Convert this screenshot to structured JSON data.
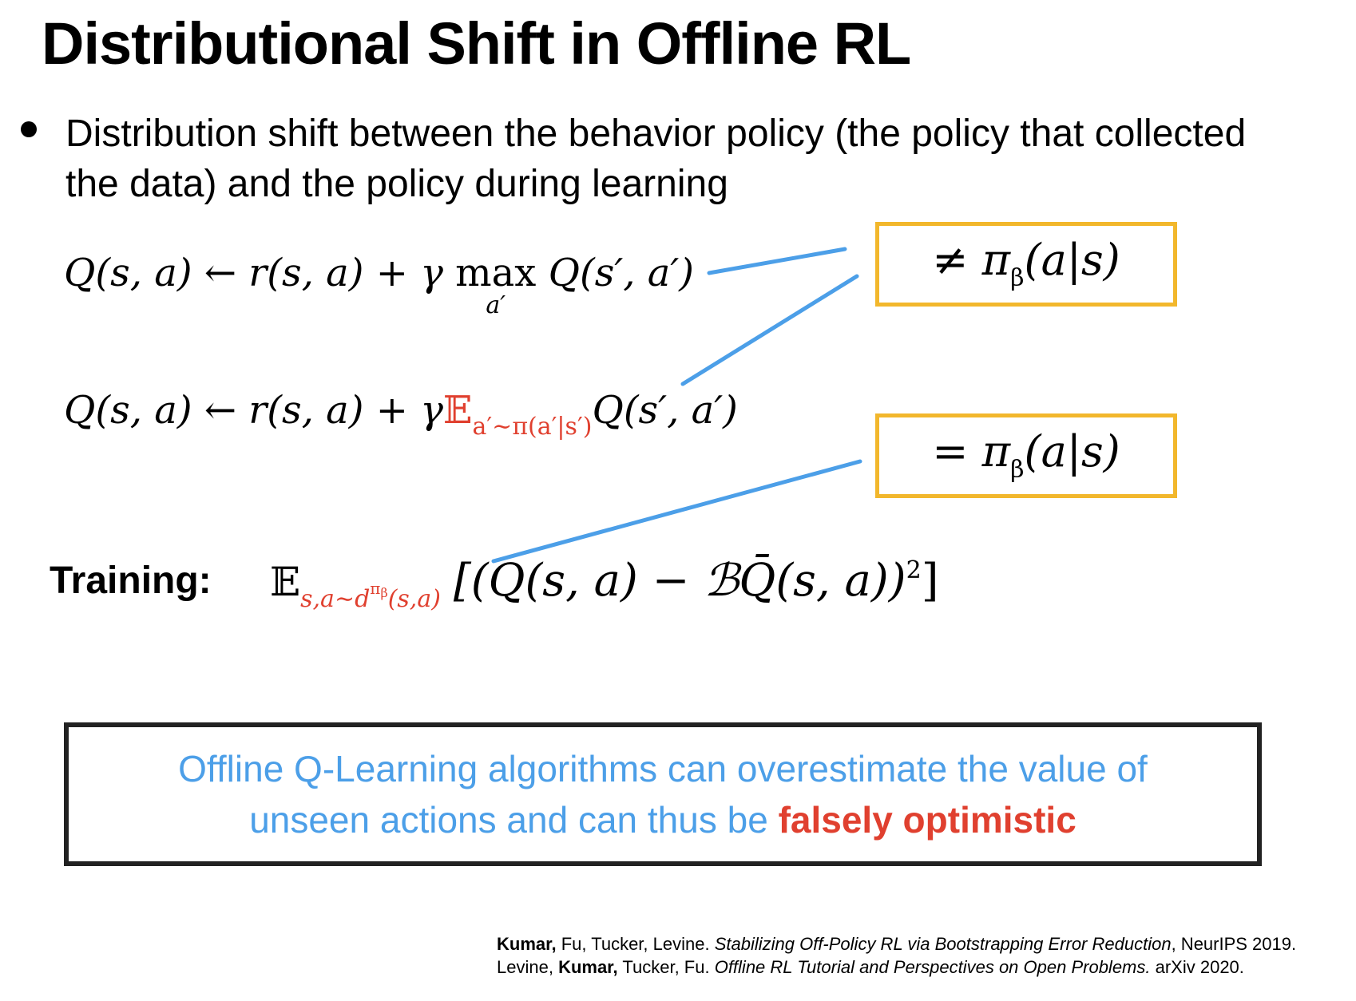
{
  "slide": {
    "title": "Distributional Shift in Offline RL",
    "bullet": "Distribution shift between the behavior policy (the policy that collected the data) and the policy during learning"
  },
  "equations": {
    "eq1": {
      "lhs": "Q(s, a) ← r(s, a) + γ",
      "op": "max",
      "op_under": "a′",
      "rhs": "Q(s′, a′)"
    },
    "eq2": {
      "lhs": "Q(s, a) ← r(s, a) + γ",
      "expect": "𝔼",
      "expect_sub": "a′∼π(a′|s′)",
      "rhs": "Q(s′, a′)"
    },
    "box_not_equal": "≠ π",
    "box_equal": "= π",
    "box_beta": "β",
    "box_tail": "(a|s)",
    "training": {
      "label": "Training:",
      "expect": "𝔼",
      "sub_main": "s,a∼d",
      "sub_sup": "π",
      "sub_sup_sub": "β",
      "sub_tail": "(s,a)",
      "body": "[(Q(s, a) − ℬQ̄(s, a))",
      "body_sup": "2",
      "body_close": "]"
    }
  },
  "conclusion": {
    "line1": "Offline Q-Learning algorithms can overestimate the value of",
    "line2_prefix": "unseen actions and can thus be ",
    "highlight": "falsely optimistic"
  },
  "references": [
    {
      "lead_author": "Kumar,",
      "authors": " Fu, Tucker, Levine. ",
      "title": "Stabilizing Off-Policy RL via Bootstrapping Error Reduction",
      "venue": ", NeurIPS 2019."
    },
    {
      "authors_before": "Levine, ",
      "lead_author": "Kumar,",
      "authors_after": " Tucker, Fu. ",
      "title": "Offline RL Tutorial and Perspectives on Open Problems.",
      "venue": " arXiv 2020."
    }
  ],
  "colors": {
    "box_border": "#f2b72c",
    "connector_line": "#4c9fe8",
    "highlight_red": "#e0402f",
    "conclusion_blue": "#4c9fe8"
  }
}
